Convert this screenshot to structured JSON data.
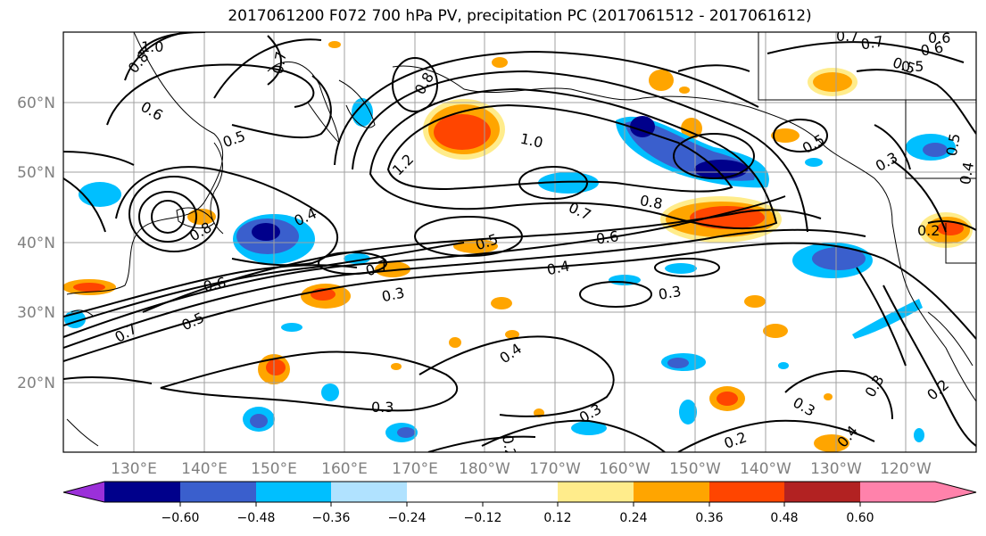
{
  "title": "2017061200 F072 700 hPa PV, precipitation PC (2017061512 - 2017061612)",
  "lat_labels": [
    "60°N",
    "50°N",
    "40°N",
    "30°N",
    "20°N"
  ],
  "lon_labels": [
    "130°E",
    "140°E",
    "150°E",
    "160°E",
    "170°E",
    "180°W",
    "170°W",
    "160°W",
    "150°W",
    "140°W",
    "130°W",
    "120°W"
  ],
  "colorbar": {
    "ticks": [
      "−0.60",
      "−0.48",
      "−0.36",
      "−0.24",
      "−0.12",
      "0.12",
      "0.24",
      "0.36",
      "0.48",
      "0.60"
    ],
    "colors": [
      "#9b30d9",
      "#00008b",
      "#3a5fcd",
      "#00bfff",
      "#b0e2ff",
      "#ffffff",
      "#ffec8b",
      "#ffa500",
      "#ff4500",
      "#b22222",
      "#ff82ab"
    ]
  },
  "contour_labels": [
    "1.0",
    "0.8",
    "0.6",
    "0.7",
    "0.5",
    "0.4",
    "0.8",
    "0.6",
    "0.5",
    "1.2",
    "1.0",
    "0.8",
    "0.7",
    "0.6",
    "0.5",
    "0.4",
    "0.3",
    "0.4",
    "0.7",
    "0.3",
    "0.5",
    "0.7",
    "0.3",
    "0.8",
    "0.7",
    "0.6",
    "0.5",
    "0.3",
    "0.5",
    "0.2",
    "0.3",
    "0.3",
    "0.2",
    "0.3",
    "0.2",
    "0.4",
    "0.4",
    "0.2",
    "0.7",
    "0.6",
    "0.5"
  ],
  "legend_colors": {
    "neg_dark": "#00008b",
    "neg_mid": "#3a5fcd",
    "neg_cyan": "#00bfff",
    "pos_yellow": "#ffec8b",
    "pos_orange": "#ffa500",
    "pos_red": "#ff4500"
  }
}
